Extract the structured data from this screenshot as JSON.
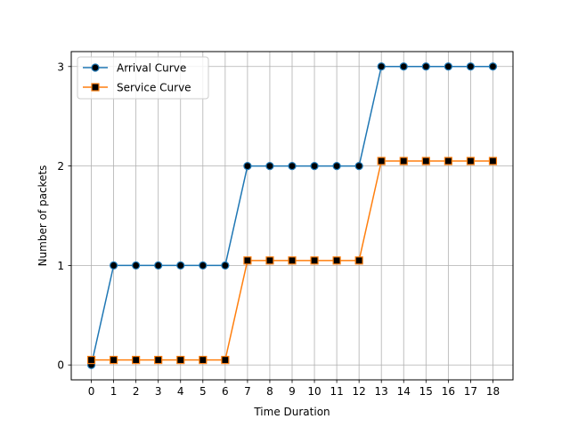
{
  "chart_data": {
    "type": "line",
    "title": "",
    "xlabel": "Time Duration",
    "ylabel": "Number of packets",
    "x": [
      0,
      1,
      2,
      3,
      4,
      5,
      6,
      7,
      8,
      9,
      10,
      11,
      12,
      13,
      14,
      15,
      16,
      17,
      18
    ],
    "xticks": [
      "0",
      "1",
      "2",
      "3",
      "4",
      "5",
      "6",
      "7",
      "8",
      "9",
      "10",
      "11",
      "12",
      "13",
      "14",
      "15",
      "16",
      "17",
      "18"
    ],
    "yticks": [
      "0",
      "1",
      "2",
      "3"
    ],
    "xlim": [
      -0.9,
      18.9
    ],
    "ylim": [
      -0.15,
      3.15
    ],
    "grid": true,
    "legend_position": "upper left",
    "series": [
      {
        "name": "Arrival Curve",
        "color": "#1f77b4",
        "marker": "circle",
        "marker_face": "#000000",
        "values": [
          0,
          1,
          1,
          1,
          1,
          1,
          1,
          2,
          2,
          2,
          2,
          2,
          2,
          3,
          3,
          3,
          3,
          3,
          3
        ]
      },
      {
        "name": "Service Curve",
        "color": "#ff7f0e",
        "marker": "square",
        "marker_face": "#000000",
        "values": [
          0.05,
          0.05,
          0.05,
          0.05,
          0.05,
          0.05,
          0.05,
          1.05,
          1.05,
          1.05,
          1.05,
          1.05,
          1.05,
          2.05,
          2.05,
          2.05,
          2.05,
          2.05,
          2.05
        ]
      }
    ]
  }
}
